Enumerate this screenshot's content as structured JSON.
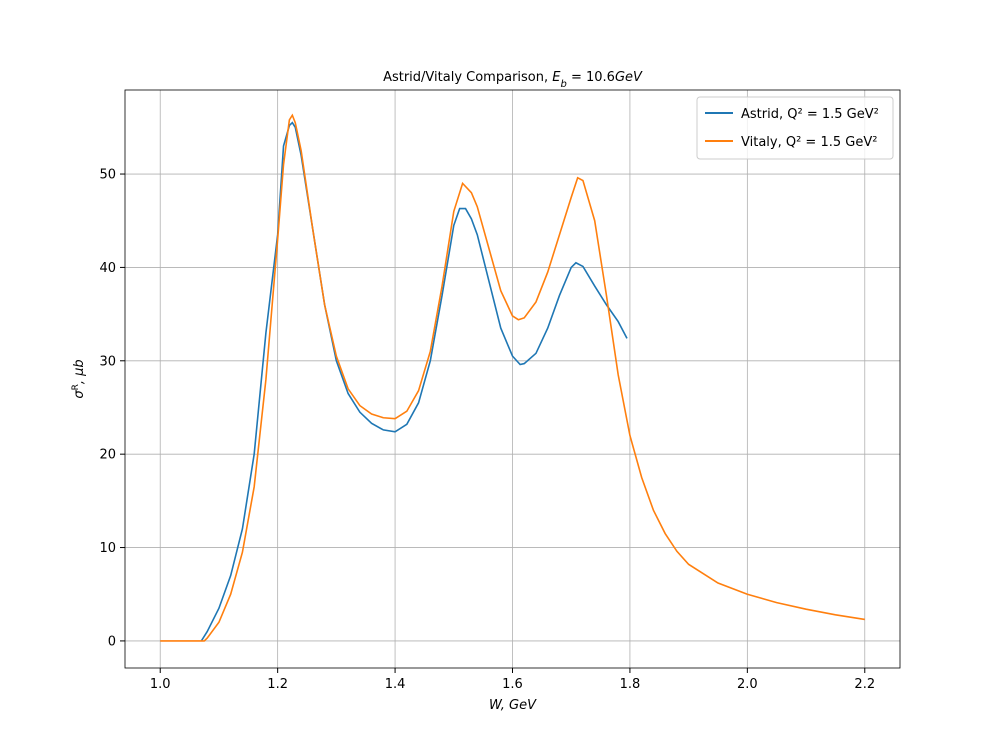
{
  "chart_data": {
    "type": "line",
    "title": [
      {
        "text": "Astrid/Vitaly Comparison, "
      },
      {
        "text": "E",
        "italic": true
      },
      {
        "text": "b",
        "italic": true,
        "sub": true
      },
      {
        "text": " = 10.6"
      },
      {
        "text": "GeV",
        "italic": true
      }
    ],
    "xlabel": [
      {
        "text": "W, GeV",
        "italic": true
      }
    ],
    "ylabel": [
      {
        "text": "σ",
        "italic": true
      },
      {
        "text": "R",
        "sup": true
      },
      {
        "text": ", μb",
        "italic": true
      }
    ],
    "xlim": [
      0.94,
      2.26
    ],
    "ylim": [
      -2.9,
      59.0
    ],
    "xticks": [
      {
        "value": 1,
        "label": "1.0"
      },
      1.2,
      1.4,
      1.6,
      1.8,
      {
        "value": 2,
        "label": "2.0"
      },
      2.2
    ],
    "yticks": [
      0,
      10,
      20,
      30,
      40,
      50
    ],
    "grid": true,
    "legend": "upper right",
    "series": [
      {
        "name": "Astrid, Q² = 1.5 GeV²",
        "color": "#1f77b4",
        "x": [
          1.07,
          1.08,
          1.1,
          1.12,
          1.14,
          1.16,
          1.18,
          1.2,
          1.21,
          1.22,
          1.225,
          1.23,
          1.24,
          1.26,
          1.28,
          1.3,
          1.32,
          1.34,
          1.36,
          1.38,
          1.4,
          1.42,
          1.44,
          1.46,
          1.48,
          1.5,
          1.51,
          1.52,
          1.53,
          1.54,
          1.56,
          1.58,
          1.6,
          1.613,
          1.62,
          1.64,
          1.66,
          1.68,
          1.7,
          1.708,
          1.72,
          1.74,
          1.76,
          1.78,
          1.795
        ],
        "values": [
          0,
          1.0,
          3.5,
          7,
          12,
          20,
          33,
          43.5,
          53,
          55.2,
          55.5,
          55,
          52,
          44,
          36,
          30,
          26.5,
          24.5,
          23.3,
          22.6,
          22.4,
          23.2,
          25.5,
          30,
          37,
          44.5,
          46.3,
          46.3,
          45.2,
          43.5,
          38.5,
          33.5,
          30.5,
          29.6,
          29.7,
          30.8,
          33.5,
          37,
          40,
          40.5,
          40.1,
          38,
          36,
          34.2,
          32.4
        ]
      },
      {
        "name": "Vitaly, Q² = 1.5 GeV²",
        "color": "#ff7f0e",
        "x": [
          1.0,
          1.075,
          1.08,
          1.1,
          1.12,
          1.14,
          1.16,
          1.18,
          1.2,
          1.21,
          1.22,
          1.225,
          1.23,
          1.24,
          1.26,
          1.28,
          1.3,
          1.32,
          1.34,
          1.36,
          1.38,
          1.4,
          1.42,
          1.44,
          1.46,
          1.48,
          1.5,
          1.515,
          1.53,
          1.54,
          1.56,
          1.58,
          1.6,
          1.61,
          1.62,
          1.64,
          1.66,
          1.68,
          1.7,
          1.711,
          1.72,
          1.74,
          1.76,
          1.78,
          1.8,
          1.82,
          1.84,
          1.86,
          1.88,
          1.9,
          1.95,
          2.0,
          2.05,
          2.1,
          2.15,
          2.2
        ],
        "values": [
          0,
          0,
          0.3,
          2,
          5,
          9.5,
          16.5,
          28,
          43,
          51,
          55.8,
          56.3,
          55.5,
          52.5,
          44,
          36,
          30.5,
          27,
          25.2,
          24.3,
          23.9,
          23.8,
          24.6,
          26.8,
          31,
          38,
          46,
          49,
          48,
          46.5,
          42,
          37.5,
          34.8,
          34.4,
          34.6,
          36.3,
          39.5,
          43.5,
          47.5,
          49.6,
          49.3,
          45,
          37,
          28.5,
          22,
          17.5,
          14,
          11.5,
          9.6,
          8.2,
          6.2,
          5.0,
          4.1,
          3.4,
          2.8,
          2.3
        ]
      }
    ]
  }
}
